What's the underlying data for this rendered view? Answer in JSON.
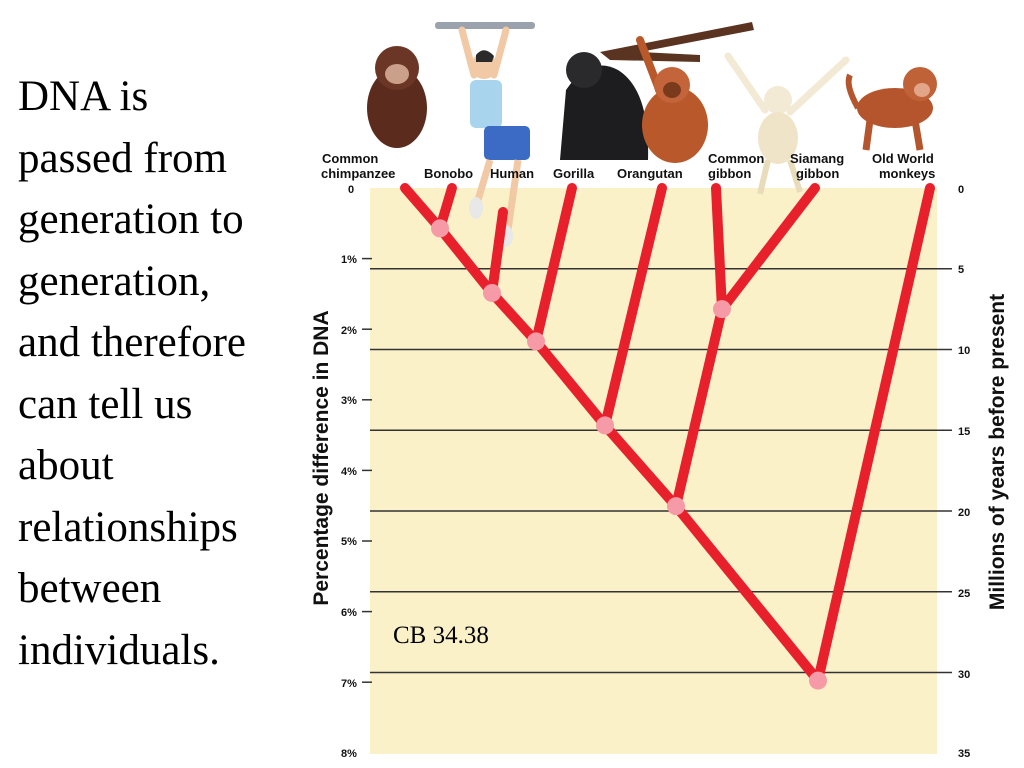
{
  "text_lines": [
    "DNA is",
    "passed from",
    "generation to",
    "generation,",
    "and therefore",
    "can tell us",
    "about",
    "relationships",
    "between",
    "individuals."
  ],
  "figure_ref": "CB 34.38",
  "taxa": [
    {
      "line1": "Common",
      "line2": "chimpanzee",
      "icon": "chimpanzee-icon"
    },
    {
      "line1": "",
      "line2": "Bonobo",
      "icon": "bonobo-icon"
    },
    {
      "line1": "",
      "line2": "Human",
      "icon": "human-icon"
    },
    {
      "line1": "",
      "line2": "Gorilla",
      "icon": "gorilla-icon"
    },
    {
      "line1": "",
      "line2": "Orangutan",
      "icon": "orangutan-icon"
    },
    {
      "line1": "Common",
      "line2": "gibbon",
      "icon": "gibbon-icon"
    },
    {
      "line1": "Siamang",
      "line2": "gibbon",
      "icon": "siamang-icon"
    },
    {
      "line1": "Old World",
      "line2": "monkeys",
      "icon": "monkey-icon"
    }
  ],
  "left_axis": {
    "title": "Percentage difference in DNA",
    "ticks": [
      "0",
      "1%",
      "2%",
      "3%",
      "4%",
      "5%",
      "6%",
      "7%",
      "8%"
    ]
  },
  "right_axis": {
    "title": "Millions of years before present",
    "ticks": [
      "0",
      "5",
      "10",
      "15",
      "20",
      "25",
      "30",
      "35"
    ]
  },
  "splits_myr": {
    "chimp_bonobo": 2.5,
    "human": 6.5,
    "gorilla": 9.5,
    "orangutan": 14.7,
    "gibbons": 7.5,
    "hominoids": 19.7,
    "old_world_monkeys": 30.5
  },
  "colors": {
    "background": "#fbf1c9",
    "branch": "#e8202c",
    "node": "#f59aa6",
    "grid": "#333333"
  }
}
